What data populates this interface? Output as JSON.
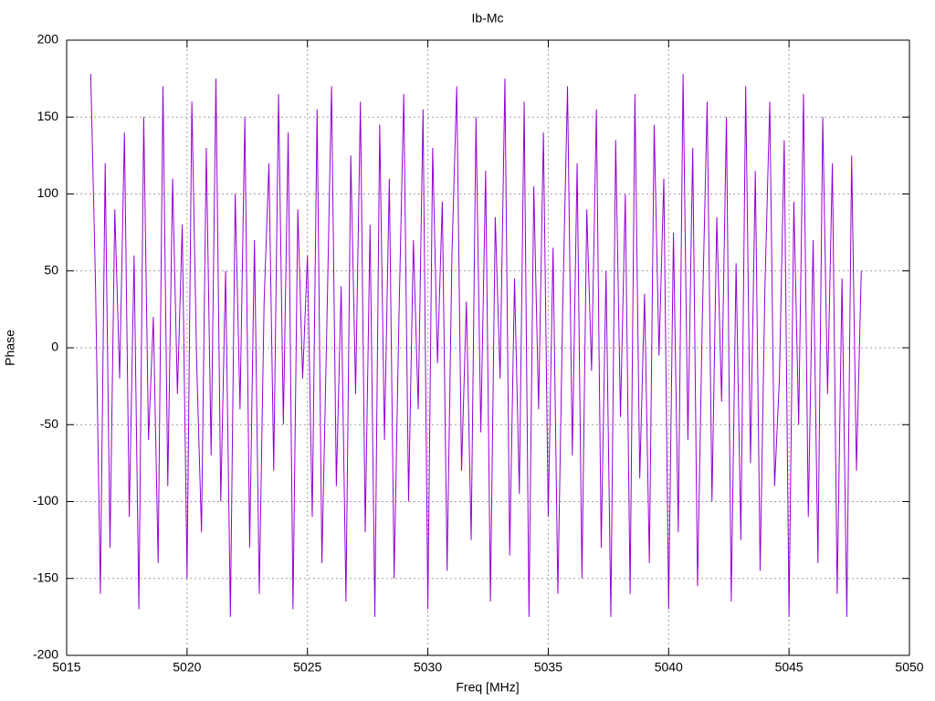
{
  "chart_data": {
    "type": "line",
    "title": "Ib-Mc",
    "xlabel": "Freq [MHz]",
    "ylabel": "Phase",
    "xlim": [
      5015,
      5050
    ],
    "ylim": [
      -200,
      200
    ],
    "xticks": [
      5015,
      5020,
      5025,
      5030,
      5035,
      5040,
      5045,
      5050
    ],
    "yticks": [
      -200,
      -150,
      -100,
      -50,
      0,
      50,
      100,
      150,
      200
    ],
    "grid": true,
    "x": [
      5016,
      5016.2,
      5016.4,
      5016.6,
      5016.8,
      5017,
      5017.2,
      5017.4,
      5017.6,
      5017.8,
      5018,
      5018.2,
      5018.4,
      5018.6,
      5018.8,
      5019,
      5019.2,
      5019.4,
      5019.6,
      5019.8,
      5020,
      5020.2,
      5020.4,
      5020.6,
      5020.8,
      5021,
      5021.2,
      5021.4,
      5021.6,
      5021.8,
      5022,
      5022.2,
      5022.4,
      5022.6,
      5022.8,
      5023,
      5023.2,
      5023.4,
      5023.6,
      5023.8,
      5024,
      5024.2,
      5024.4,
      5024.6,
      5024.8,
      5025,
      5025.2,
      5025.4,
      5025.6,
      5025.8,
      5026,
      5026.2,
      5026.4,
      5026.6,
      5026.8,
      5027,
      5027.2,
      5027.4,
      5027.6,
      5027.8,
      5028,
      5028.2,
      5028.4,
      5028.6,
      5028.8,
      5029,
      5029.2,
      5029.4,
      5029.6,
      5029.8,
      5030,
      5030.2,
      5030.4,
      5030.6,
      5030.8,
      5031,
      5031.2,
      5031.4,
      5031.6,
      5031.8,
      5032,
      5032.2,
      5032.4,
      5032.6,
      5032.8,
      5033,
      5033.2,
      5033.4,
      5033.6,
      5033.8,
      5034,
      5034.2,
      5034.4,
      5034.6,
      5034.8,
      5035,
      5035.2,
      5035.4,
      5035.6,
      5035.8,
      5036,
      5036.2,
      5036.4,
      5036.6,
      5036.8,
      5037,
      5037.2,
      5037.4,
      5037.6,
      5037.8,
      5038,
      5038.2,
      5038.4,
      5038.6,
      5038.8,
      5039,
      5039.2,
      5039.4,
      5039.6,
      5039.8,
      5040,
      5040.2,
      5040.4,
      5040.6,
      5040.8,
      5041,
      5041.2,
      5041.4,
      5041.6,
      5041.8,
      5042,
      5042.2,
      5042.4,
      5042.6,
      5042.8,
      5043,
      5043.2,
      5043.4,
      5043.6,
      5043.8,
      5044,
      5044.2,
      5044.4,
      5044.6,
      5044.8,
      5045,
      5045.2,
      5045.4,
      5045.6,
      5045.8,
      5046,
      5046.2,
      5046.4,
      5046.6,
      5046.8,
      5047,
      5047.2,
      5047.4,
      5047.6,
      5047.8,
      5048
    ],
    "series": [
      {
        "name": "Ib-Mc",
        "color": "#9400d3",
        "values": [
          178,
          40,
          -160,
          120,
          -130,
          90,
          -20,
          140,
          -110,
          60,
          -170,
          150,
          -60,
          20,
          -140,
          170,
          -90,
          110,
          -30,
          80,
          -150,
          160,
          -10,
          -120,
          130,
          -70,
          175,
          -100,
          50,
          -175,
          100,
          -40,
          150,
          -130,
          70,
          -160,
          30,
          120,
          -80,
          165,
          -50,
          140,
          -170,
          90,
          -20,
          60,
          -110,
          155,
          -140,
          10,
          170,
          -90,
          40,
          -165,
          125,
          -30,
          160,
          -120,
          80,
          -175,
          145,
          -60,
          110,
          -150,
          20,
          165,
          -100,
          70,
          -40,
          155,
          -170,
          130,
          -10,
          95,
          -145,
          60,
          170,
          -80,
          30,
          -125,
          150,
          -55,
          115,
          -165,
          85,
          -20,
          175,
          -135,
          45,
          -95,
          160,
          -175,
          105,
          -40,
          140,
          -110,
          65,
          -160,
          25,
          170,
          -70,
          120,
          -150,
          90,
          -15,
          155,
          -130,
          50,
          -175,
          135,
          -45,
          100,
          -160,
          165,
          -85,
          35,
          -140,
          145,
          -5,
          110,
          -170,
          75,
          -120,
          178,
          -60,
          130,
          -155,
          20,
          160,
          -100,
          85,
          -35,
          150,
          -165,
          55,
          -125,
          170,
          -75,
          115,
          -145,
          40,
          160,
          -90,
          -20,
          135,
          -175,
          95,
          -50,
          165,
          -110,
          70,
          -140,
          150,
          -30,
          120,
          -160,
          45,
          -175,
          125,
          -80,
          50
        ]
      }
    ]
  }
}
